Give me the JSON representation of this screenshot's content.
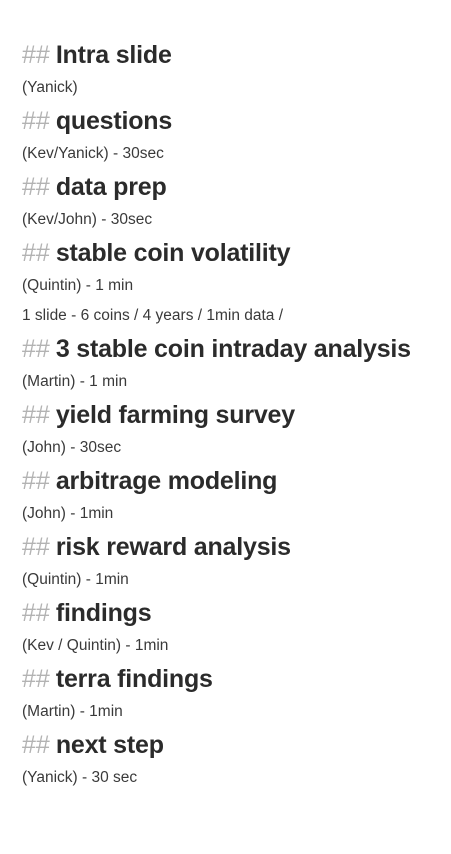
{
  "sections": [
    {
      "marker": "##",
      "title": "Intra slide",
      "lines": [
        "(Yanick)"
      ]
    },
    {
      "marker": "##",
      "title": "questions",
      "lines": [
        "(Kev/Yanick) - 30sec"
      ]
    },
    {
      "marker": "##",
      "title": "data prep",
      "lines": [
        "(Kev/John) - 30sec"
      ]
    },
    {
      "marker": "##",
      "title": "stable coin volatility",
      "lines": [
        "(Quintin) - 1 min",
        "1 slide - 6 coins / 4 years / 1min data /"
      ]
    },
    {
      "marker": "##",
      "title": "3 stable coin intraday analysis",
      "lines": [
        "(Martin) - 1 min"
      ]
    },
    {
      "marker": "##",
      "title": "yield farming survey",
      "lines": [
        "(John) - 30sec"
      ]
    },
    {
      "marker": "##",
      "title": "arbitrage modeling",
      "lines": [
        "(John) - 1min"
      ]
    },
    {
      "marker": "##",
      "title": "risk reward analysis",
      "lines": [
        "(Quintin) - 1min"
      ]
    },
    {
      "marker": "##",
      "title": "findings",
      "lines": [
        "(Kev / Quintin) - 1min"
      ]
    },
    {
      "marker": "##",
      "title": "terra findings",
      "lines": [
        "(Martin) - 1min"
      ]
    },
    {
      "marker": "##",
      "title": "next step",
      "lines": [
        "(Yanick) - 30 sec"
      ]
    }
  ]
}
